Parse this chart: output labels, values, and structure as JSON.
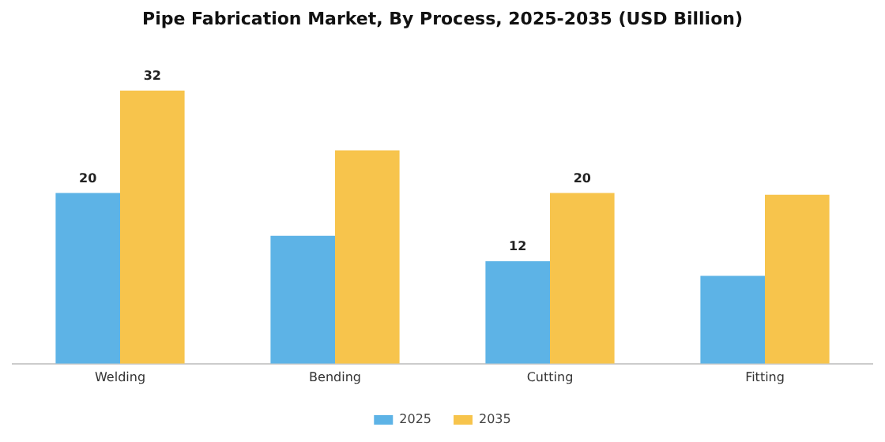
{
  "chart_data": {
    "type": "bar",
    "title": "Pipe Fabrication Market, By Process, 2025-2035 (USD Billion)",
    "categories": [
      "Welding",
      "Bending",
      "Cutting",
      "Fitting"
    ],
    "series": [
      {
        "name": "2025",
        "color": "#5db3e6",
        "values": [
          20,
          15,
          12,
          10.3
        ],
        "value_labels": [
          "20",
          null,
          "12",
          null
        ]
      },
      {
        "name": "2035",
        "color": "#f7c44c",
        "values": [
          32,
          25,
          20,
          19.8
        ],
        "value_labels": [
          "32",
          null,
          "20",
          null
        ]
      }
    ],
    "legend": "bottom",
    "grid": false
  }
}
